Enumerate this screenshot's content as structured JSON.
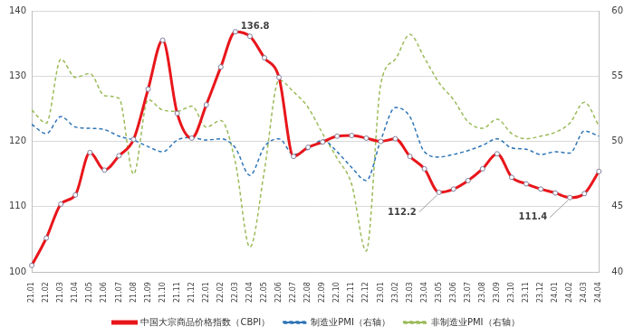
{
  "chart_data": {
    "type": "line",
    "categories": [
      "21.01",
      "21.02",
      "21.03",
      "21.04",
      "21.05",
      "21.06",
      "21.07",
      "21.08",
      "21.09",
      "21.10",
      "21.11",
      "21.12",
      "22.01",
      "22.02",
      "22.03",
      "22.04",
      "22.05",
      "22.06",
      "22.07",
      "22.08",
      "22.09",
      "22.10",
      "22.11",
      "22.12",
      "23.01",
      "23.02",
      "23.03",
      "23.04",
      "23.05",
      "23.06",
      "23.07",
      "23.08",
      "23.09",
      "23.10",
      "23.11",
      "23.12",
      "24.01",
      "24.02",
      "24.03",
      "24.04"
    ],
    "series": [
      {
        "name": "中国大宗商品价格指数（CBPI）",
        "color": "#e8161b",
        "axis": "y",
        "marker": "circle",
        "line_style": "solid",
        "values": [
          101,
          105.2,
          110.4,
          111.8,
          118.3,
          115.6,
          117.8,
          120.3,
          128,
          135.5,
          124.3,
          120.5,
          125.6,
          131.4,
          136.8,
          136.1,
          132.8,
          129.8,
          117.7,
          119.1,
          119.9,
          120.8,
          120.9,
          120.5,
          120,
          120.4,
          117.7,
          115.8,
          112.2,
          112.7,
          114,
          115.8,
          118.1,
          114.5,
          113.5,
          112.7,
          112.1,
          111.4,
          112,
          115.4
        ]
      },
      {
        "name": "制造业PMI（右轴）",
        "color": "#2e75b6",
        "axis": "y2",
        "marker": "none",
        "line_style": "dashed",
        "values": [
          51.3,
          50.6,
          51.9,
          51.1,
          51.0,
          50.9,
          50.4,
          50.1,
          49.6,
          49.2,
          50.1,
          50.3,
          50.1,
          50.2,
          49.5,
          47.4,
          49.6,
          50.2,
          49.0,
          49.4,
          50.1,
          49.2,
          48.0,
          47.0,
          50.1,
          52.6,
          51.9,
          49.2,
          48.8,
          49.0,
          49.3,
          49.7,
          50.2,
          49.5,
          49.4,
          49.0,
          49.2,
          49.1,
          50.8,
          50.4
        ]
      },
      {
        "name": "非制造业PMI（右轴）",
        "color": "#9bbb59",
        "axis": "y2",
        "marker": "none",
        "line_style": "dashed",
        "values": [
          52.4,
          51.4,
          56.3,
          54.9,
          55.2,
          53.5,
          53.3,
          47.5,
          53.2,
          52.4,
          52.3,
          52.7,
          51.1,
          51.6,
          48.4,
          41.9,
          47.8,
          54.7,
          53.8,
          52.6,
          50.6,
          48.7,
          46.7,
          41.6,
          54.4,
          56.3,
          58.2,
          56.4,
          54.5,
          53.2,
          51.5,
          51.0,
          51.7,
          50.6,
          50.2,
          50.4,
          50.7,
          51.4,
          53.0,
          51.2
        ]
      }
    ],
    "annotations": [
      {
        "text": "136.8",
        "category": "22.03",
        "value": 136.8
      },
      {
        "text": "112.2",
        "category": "23.05",
        "value": 112.2
      },
      {
        "text": "111.4",
        "category": "24.02",
        "value": 111.4
      }
    ],
    "ylim": [
      100,
      140
    ],
    "yticks": [
      100,
      110,
      120,
      130,
      140
    ],
    "y2lim": [
      40,
      60
    ],
    "y2ticks": [
      40,
      45,
      50,
      55,
      60
    ],
    "grid": true,
    "legend": "bottom"
  }
}
